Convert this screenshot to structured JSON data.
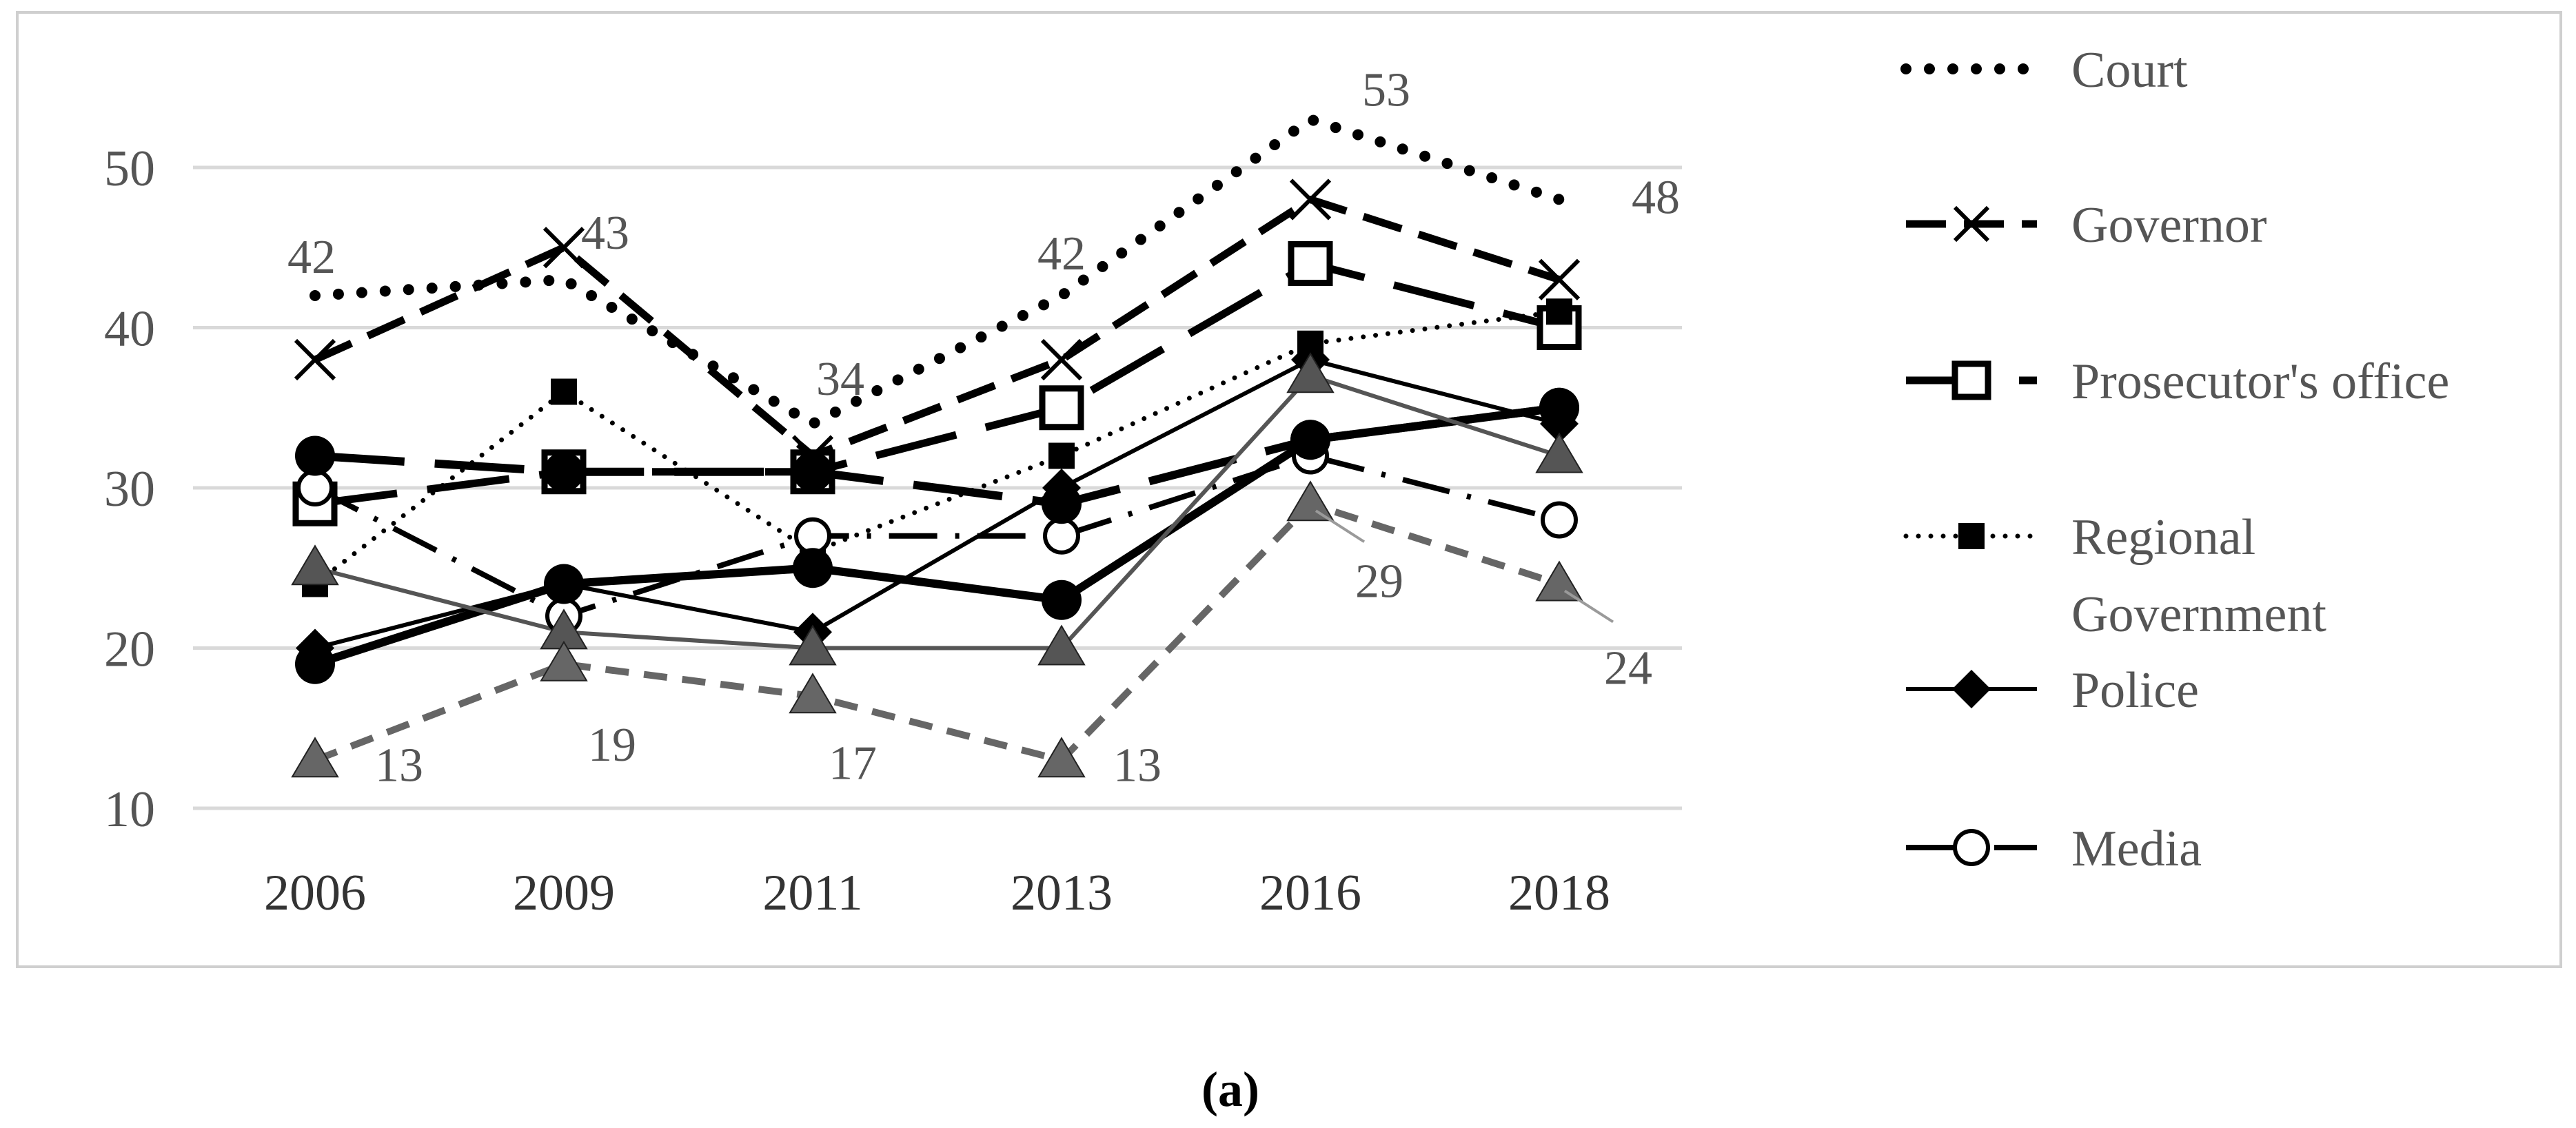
{
  "chart_data": {
    "type": "line",
    "title": "",
    "xlabel": "",
    "ylabel": "",
    "categories": [
      "2006",
      "2009",
      "2011",
      "2013",
      "2016",
      "2018"
    ],
    "y_ticks": [
      "10",
      "20",
      "30",
      "40",
      "50"
    ],
    "ylim": [
      10,
      50
    ],
    "grid": "horizontal",
    "legend_placement": "right",
    "series": [
      {
        "name": "Court",
        "values": [
          42,
          43,
          34,
          42,
          53,
          48
        ],
        "marker": "none",
        "line": "dotted-bold",
        "color": "#000000"
      },
      {
        "name": "Governor",
        "values": [
          38,
          45,
          32,
          38,
          48,
          43
        ],
        "marker": "x",
        "line": "dashed-long",
        "color": "#000000"
      },
      {
        "name": "Prosecutor's office",
        "values": [
          29,
          31,
          31,
          35,
          44,
          40
        ],
        "marker": "open-square",
        "line": "long-dash",
        "color": "#000000"
      },
      {
        "name": "Regional Government",
        "values": [
          24,
          36,
          26,
          32,
          39,
          41
        ],
        "marker": "filled-square",
        "line": "dotted",
        "color": "#000000"
      },
      {
        "name": "Police",
        "values": [
          20,
          24,
          21,
          30,
          38,
          34
        ],
        "marker": "filled-diamond",
        "line": "solid",
        "color": "#000000"
      },
      {
        "name": "Media",
        "values": [
          30,
          22,
          27,
          27,
          32,
          28
        ],
        "marker": "open-circle",
        "line": "long-dash-dot",
        "color": "#000000"
      },
      {
        "name": "",
        "values": [
          32,
          31,
          31,
          29,
          33,
          35
        ],
        "marker": "filled-circle",
        "line": "long-dash-thick",
        "color": "#000000"
      },
      {
        "name": "",
        "values": [
          19,
          24,
          25,
          23,
          33,
          35
        ],
        "marker": "filled-circle",
        "line": "solid-thick",
        "color": "#000000"
      },
      {
        "name": "",
        "values": [
          25,
          21,
          20,
          20,
          37,
          32
        ],
        "marker": "filled-triangle",
        "line": "solid",
        "color": "#555555"
      },
      {
        "name": "",
        "values": [
          13,
          19,
          17,
          13,
          29,
          24
        ],
        "marker": "filled-triangle",
        "line": "dashed",
        "color": "#666666"
      }
    ],
    "data_labels": [
      {
        "text": "42",
        "series": 0,
        "index": 0
      },
      {
        "text": "43",
        "series": 0,
        "index": 1
      },
      {
        "text": "34",
        "series": 0,
        "index": 2
      },
      {
        "text": "42",
        "series": 0,
        "index": 3
      },
      {
        "text": "53",
        "series": 0,
        "index": 4
      },
      {
        "text": "48",
        "series": 0,
        "index": 5
      },
      {
        "text": "13",
        "series": 9,
        "index": 0
      },
      {
        "text": "19",
        "series": 9,
        "index": 1
      },
      {
        "text": "17",
        "series": 9,
        "index": 2
      },
      {
        "text": "13",
        "series": 9,
        "index": 3
      },
      {
        "text": "29",
        "series": 9,
        "index": 4
      },
      {
        "text": "24",
        "series": 9,
        "index": 5
      }
    ],
    "legend": [
      {
        "label": "Court"
      },
      {
        "label": "Governor"
      },
      {
        "label": "Prosecutor's office"
      },
      {
        "label": "Regional Government"
      },
      {
        "label": "Police"
      },
      {
        "label": "Media"
      }
    ]
  },
  "caption": "(a)"
}
